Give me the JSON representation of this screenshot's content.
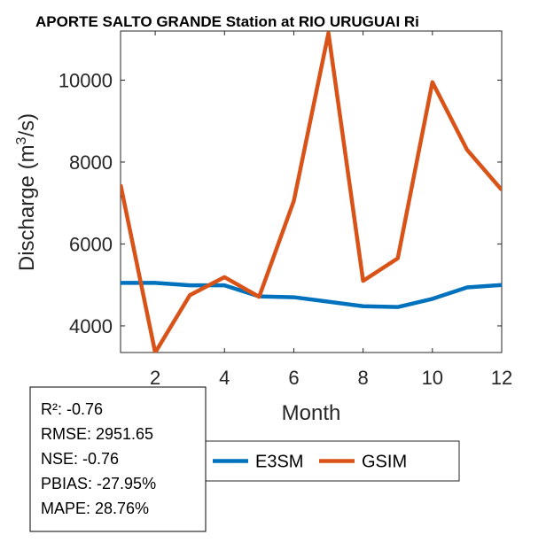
{
  "chart_data": {
    "type": "line",
    "title": "APORTE SALTO GRANDE  Station at  RIO URUGUAI  Ri",
    "xlabel": "Month",
    "ylabel_main": "Discharge (m",
    "ylabel_sup": "3",
    "ylabel_end": "/s)",
    "xlim": [
      1,
      12
    ],
    "ylim": [
      3350,
      11200
    ],
    "xticks": [
      2,
      4,
      6,
      8,
      10,
      12
    ],
    "xtick_labels": [
      "2",
      "4",
      "6",
      "8",
      "10",
      "12"
    ],
    "yticks": [
      4000,
      6000,
      8000,
      10000
    ],
    "ytick_labels": [
      "4000",
      "6000",
      "8000",
      "10000"
    ],
    "x": [
      1,
      2,
      3,
      4,
      5,
      6,
      7,
      8,
      9,
      10,
      11,
      12
    ],
    "series": [
      {
        "name": "E3SM",
        "color": "#0072BD",
        "values": [
          5050,
          5050,
          4990,
          4990,
          4720,
          4700,
          4590,
          4480,
          4460,
          4660,
          4940,
          5000
        ]
      },
      {
        "name": "GSIM",
        "color": "#D95319",
        "values": [
          7450,
          3350,
          4750,
          5190,
          4710,
          7050,
          11150,
          5100,
          5650,
          9950,
          8300,
          7320
        ]
      }
    ],
    "grid": false,
    "legend_placement": "bottom-center",
    "stats": [
      "R²: -0.76",
      "RMSE: 2951.65",
      "NSE: -0.76",
      "PBIAS: -27.95%",
      "MAPE: 28.76%"
    ]
  }
}
